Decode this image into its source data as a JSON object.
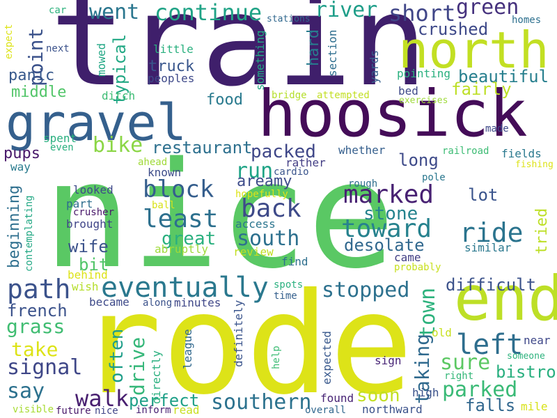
{
  "cloud": {
    "words": [
      {
        "text": "train",
        "color": "#3f1f6b",
        "rotated": false
      },
      {
        "text": "nice",
        "color": "#5ac864",
        "rotated": false
      },
      {
        "text": "rode",
        "color": "#dde318",
        "rotated": false
      },
      {
        "text": "hoosick",
        "color": "#440c58",
        "rotated": false
      },
      {
        "text": "gravel",
        "color": "#35608d",
        "rotated": false
      },
      {
        "text": "north",
        "color": "#c2df23",
        "rotated": false
      },
      {
        "text": "end",
        "color": "#bddf26",
        "rotated": false
      },
      {
        "text": "eventually",
        "color": "#2a788e",
        "rotated": false
      },
      {
        "text": "path",
        "color": "#3b528b",
        "rotated": false
      },
      {
        "text": "left",
        "color": "#2e6e8e",
        "rotated": false
      },
      {
        "text": "ride",
        "color": "#2b748e",
        "rotated": false
      },
      {
        "text": "back",
        "color": "#3e4a89",
        "rotated": false
      },
      {
        "text": "toward",
        "color": "#26828e",
        "rotated": false
      },
      {
        "text": "least",
        "color": "#2d708e",
        "rotated": false
      },
      {
        "text": "block",
        "color": "#355e8d",
        "rotated": false
      },
      {
        "text": "marked",
        "color": "#482173",
        "rotated": false
      },
      {
        "text": "southern",
        "color": "#2c728e",
        "rotated": false
      },
      {
        "text": "walk",
        "color": "#481f70",
        "rotated": false
      },
      {
        "text": "green",
        "color": "#46327e",
        "rotated": false
      },
      {
        "text": "short",
        "color": "#404688",
        "rotated": false
      },
      {
        "text": "continue",
        "color": "#20a386",
        "rotated": false
      },
      {
        "text": "went",
        "color": "#2a768e",
        "rotated": false
      },
      {
        "text": "river",
        "color": "#1f9e89",
        "rotated": false
      },
      {
        "text": "stopped",
        "color": "#2d718e",
        "rotated": false
      },
      {
        "text": "parked",
        "color": "#3aba76",
        "rotated": false
      },
      {
        "text": "sure",
        "color": "#5cc863",
        "rotated": false
      },
      {
        "text": "signal",
        "color": "#3f4788",
        "rotated": false
      },
      {
        "text": "take",
        "color": "#dde318",
        "rotated": false
      },
      {
        "text": "say",
        "color": "#2c718e",
        "rotated": false
      },
      {
        "text": "south",
        "color": "#2d708e",
        "rotated": false
      },
      {
        "text": "grass",
        "color": "#40bd72",
        "rotated": false
      },
      {
        "text": "difficult",
        "color": "#3b528b",
        "rotated": false
      },
      {
        "text": "soon",
        "color": "#c2df23",
        "rotated": false
      },
      {
        "text": "run",
        "color": "#20a486",
        "rotated": false
      },
      {
        "text": "town",
        "color": "#2db27d",
        "rotated": true
      },
      {
        "text": "taking",
        "color": "#306a8e",
        "rotated": true
      },
      {
        "text": "drive",
        "color": "#35b779",
        "rotated": true
      },
      {
        "text": "often",
        "color": "#1f9e89",
        "rotated": true
      },
      {
        "text": "bike",
        "color": "#8bd646",
        "rotated": false
      },
      {
        "text": "restaurant",
        "color": "#2d708e",
        "rotated": false
      },
      {
        "text": "point",
        "color": "#3b528b",
        "rotated": true
      },
      {
        "text": "beautiful",
        "color": "#277f8e",
        "rotated": false
      },
      {
        "text": "crushed",
        "color": "#3e4989",
        "rotated": false
      },
      {
        "text": "fairly",
        "color": "#bddf26",
        "rotated": false
      },
      {
        "text": "packed",
        "color": "#3f4788",
        "rotated": false
      },
      {
        "text": "long",
        "color": "#3e4a89",
        "rotated": false
      },
      {
        "text": "stone",
        "color": "#25838e",
        "rotated": false
      },
      {
        "text": "desolate",
        "color": "#31688e",
        "rotated": false
      },
      {
        "text": "great",
        "color": "#2ab07f",
        "rotated": false
      },
      {
        "text": "wife",
        "color": "#3b528b",
        "rotated": false
      },
      {
        "text": "bit",
        "color": "#52c569",
        "rotated": false
      },
      {
        "text": "perfect",
        "color": "#1fa088",
        "rotated": false
      },
      {
        "text": "falls",
        "color": "#31678e",
        "rotated": false
      },
      {
        "text": "bistro",
        "color": "#29af7f",
        "rotated": false
      },
      {
        "text": "french",
        "color": "#3b528b",
        "rotated": false
      },
      {
        "text": "panic",
        "color": "#38598c",
        "rotated": false
      },
      {
        "text": "middle",
        "color": "#52c569",
        "rotated": false
      },
      {
        "text": "food",
        "color": "#297a8e",
        "rotated": false
      },
      {
        "text": "truck",
        "color": "#39568c",
        "rotated": false
      },
      {
        "text": "typical",
        "color": "#22a884",
        "rotated": true
      },
      {
        "text": "beginning",
        "color": "#2e6f8e",
        "rotated": true
      },
      {
        "text": "areamy",
        "color": "#3e4c8a",
        "rotated": false
      },
      {
        "text": "lot",
        "color": "#3a548c",
        "rotated": false
      },
      {
        "text": "tried",
        "color": "#bddf26",
        "rotated": true
      },
      {
        "text": "pups",
        "color": "#48186a",
        "rotated": false
      },
      {
        "text": "hard",
        "color": "#287c8e",
        "rotated": true
      },
      {
        "text": "mowed",
        "color": "#22a785",
        "rotated": true
      },
      {
        "text": "ditch",
        "color": "#3dbc74",
        "rotated": false
      },
      {
        "text": "spent",
        "color": "#29af7f",
        "rotated": false
      },
      {
        "text": "even",
        "color": "#2ab07f",
        "rotated": false
      },
      {
        "text": "way",
        "color": "#297b8e",
        "rotated": false
      },
      {
        "text": "looked",
        "color": "#3e4989",
        "rotated": false
      },
      {
        "text": "part",
        "color": "#2e6d8e",
        "rotated": false
      },
      {
        "text": "crusher",
        "color": "#481769",
        "rotated": false
      },
      {
        "text": "brought",
        "color": "#404588",
        "rotated": false
      },
      {
        "text": "ball",
        "color": "#d8e219",
        "rotated": false
      },
      {
        "text": "abruptly",
        "color": "#9fda3a",
        "rotated": false
      },
      {
        "text": "review",
        "color": "#c2df23",
        "rotated": false
      },
      {
        "text": "access",
        "color": "#2b758e",
        "rotated": false
      },
      {
        "text": "hopefully",
        "color": "#dde318",
        "rotated": false
      },
      {
        "text": "known",
        "color": "#3d4d8a",
        "rotated": false
      },
      {
        "text": "ahead",
        "color": "#a0da39",
        "rotated": false
      },
      {
        "text": "cardio",
        "color": "#3a548c",
        "rotated": false
      },
      {
        "text": "rather",
        "color": "#433e85",
        "rotated": false
      },
      {
        "text": "whether",
        "color": "#355f8d",
        "rotated": false
      },
      {
        "text": "rough",
        "color": "#2e6e8e",
        "rotated": false
      },
      {
        "text": "pole",
        "color": "#2a778e",
        "rotated": false
      },
      {
        "text": "similar",
        "color": "#2a788e",
        "rotated": false
      },
      {
        "text": "came",
        "color": "#423f85",
        "rotated": false
      },
      {
        "text": "probably",
        "color": "#c8e020",
        "rotated": false
      },
      {
        "text": "find",
        "color": "#2e6f8e",
        "rotated": false
      },
      {
        "text": "behind",
        "color": "#dde318",
        "rotated": false
      },
      {
        "text": "wish",
        "color": "#b5de2b",
        "rotated": false
      },
      {
        "text": "became",
        "color": "#3e4a89",
        "rotated": false
      },
      {
        "text": "along",
        "color": "#3b528b",
        "rotated": false
      },
      {
        "text": "minutes",
        "color": "#3f4788",
        "rotated": false
      },
      {
        "text": "spots",
        "color": "#2ab07f",
        "rotated": false
      },
      {
        "text": "time",
        "color": "#35608d",
        "rotated": false
      },
      {
        "text": "definitely",
        "color": "#3a548c",
        "rotated": true
      },
      {
        "text": "league",
        "color": "#31688e",
        "rotated": true
      },
      {
        "text": "directly",
        "color": "#2ab07f",
        "rotated": true
      },
      {
        "text": "contemplating",
        "color": "#22a884",
        "rotated": true
      },
      {
        "text": "help",
        "color": "#3dbc74",
        "rotated": true
      },
      {
        "text": "expected",
        "color": "#38588c",
        "rotated": true
      },
      {
        "text": "sign",
        "color": "#482576",
        "rotated": false
      },
      {
        "text": "found",
        "color": "#482475",
        "rotated": false
      },
      {
        "text": "northward",
        "color": "#3b528b",
        "rotated": false
      },
      {
        "text": "high",
        "color": "#3b528b",
        "rotated": false
      },
      {
        "text": "right",
        "color": "#35b779",
        "rotated": false
      },
      {
        "text": "someone",
        "color": "#2db27d",
        "rotated": false
      },
      {
        "text": "near",
        "color": "#3f4889",
        "rotated": false
      },
      {
        "text": "mile",
        "color": "#d8e219",
        "rotated": false
      },
      {
        "text": "old",
        "color": "#c8e020",
        "rotated": false
      },
      {
        "text": "visible",
        "color": "#a8db34",
        "rotated": false
      },
      {
        "text": "future",
        "color": "#48186a",
        "rotated": false
      },
      {
        "text": "nice",
        "color": "#404588",
        "rotated": false
      },
      {
        "text": "inform",
        "color": "#482173",
        "rotated": false
      },
      {
        "text": "read",
        "color": "#c8e020",
        "rotated": false
      },
      {
        "text": "overall",
        "color": "#31688e",
        "rotated": false
      },
      {
        "text": "car",
        "color": "#2db27d",
        "rotated": false
      },
      {
        "text": "next",
        "color": "#3b528b",
        "rotated": false
      },
      {
        "text": "expect",
        "color": "#dde318",
        "rotated": true
      },
      {
        "text": "little",
        "color": "#2ab07f",
        "rotated": false
      },
      {
        "text": "peoples",
        "color": "#3e4989",
        "rotated": false
      },
      {
        "text": "something",
        "color": "#22a884",
        "rotated": true
      },
      {
        "text": "section",
        "color": "#2e6e8e",
        "rotated": true
      },
      {
        "text": "yards",
        "color": "#35608d",
        "rotated": true
      },
      {
        "text": "stations",
        "color": "#31688e",
        "rotated": false
      },
      {
        "text": "homes",
        "color": "#2d708e",
        "rotated": false
      },
      {
        "text": "pointing",
        "color": "#2ab07f",
        "rotated": false
      },
      {
        "text": "bed",
        "color": "#3e4989",
        "rotated": false
      },
      {
        "text": "bridge",
        "color": "#b5de2b",
        "rotated": false
      },
      {
        "text": "attempted",
        "color": "#c2df23",
        "rotated": false
      },
      {
        "text": "exercises",
        "color": "#9fda3a",
        "rotated": false
      },
      {
        "text": "made",
        "color": "#3e4989",
        "rotated": false
      },
      {
        "text": "railroad",
        "color": "#3dbc74",
        "rotated": false
      },
      {
        "text": "fields",
        "color": "#2a788e",
        "rotated": false
      },
      {
        "text": "fishing",
        "color": "#dde318",
        "rotated": false
      }
    ]
  }
}
